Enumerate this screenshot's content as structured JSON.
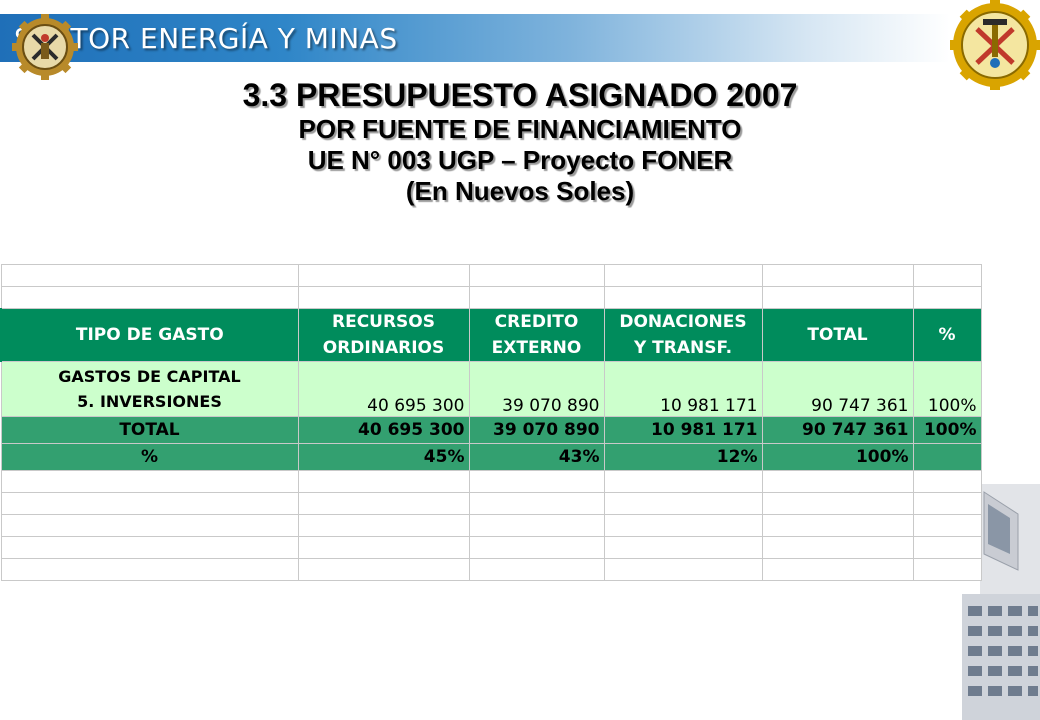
{
  "header": {
    "banner_text": "SECTOR ENERGÍA Y MINAS"
  },
  "title": {
    "line1": "3.3 PRESUPUESTO ASIGNADO 2007",
    "line2": "POR FUENTE DE FINANCIAMIENTO",
    "line3": "UE N° 003 UGP – Proyecto FONER",
    "line4": "(En Nuevos Soles)"
  },
  "table": {
    "headers": [
      {
        "line1": "TIPO DE GASTO",
        "line2": ""
      },
      {
        "line1": "RECURSOS",
        "line2": "ORDINARIOS"
      },
      {
        "line1": "CREDITO",
        "line2": "EXTERNO"
      },
      {
        "line1": "DONACIONES",
        "line2": "Y TRANSF."
      },
      {
        "line1": "TOTAL",
        "line2": ""
      },
      {
        "line1": "%",
        "line2": ""
      }
    ],
    "data_row": {
      "label_line1": "GASTOS DE CAPITAL",
      "label_line2": "5. INVERSIONES",
      "values": [
        "40 695 300",
        "39 070 890",
        "10 981 171",
        "90 747 361",
        "100%"
      ]
    },
    "total_row": {
      "label": "TOTAL",
      "values": [
        "40 695 300",
        "39 070 890",
        "10 981 171",
        "90 747 361",
        "100%"
      ]
    },
    "percent_row": {
      "label": "%",
      "values": [
        "45%",
        "43%",
        "12%",
        "100%",
        ""
      ]
    }
  },
  "colors": {
    "header_green": "#008c5c",
    "row_light_green": "#ccffcc",
    "total_green": "#33a070",
    "banner_blue": "#1f6fb8"
  },
  "icons": {
    "left_logo": "gear-emblem-icon",
    "right_logo": "mining-emblem-icon"
  }
}
